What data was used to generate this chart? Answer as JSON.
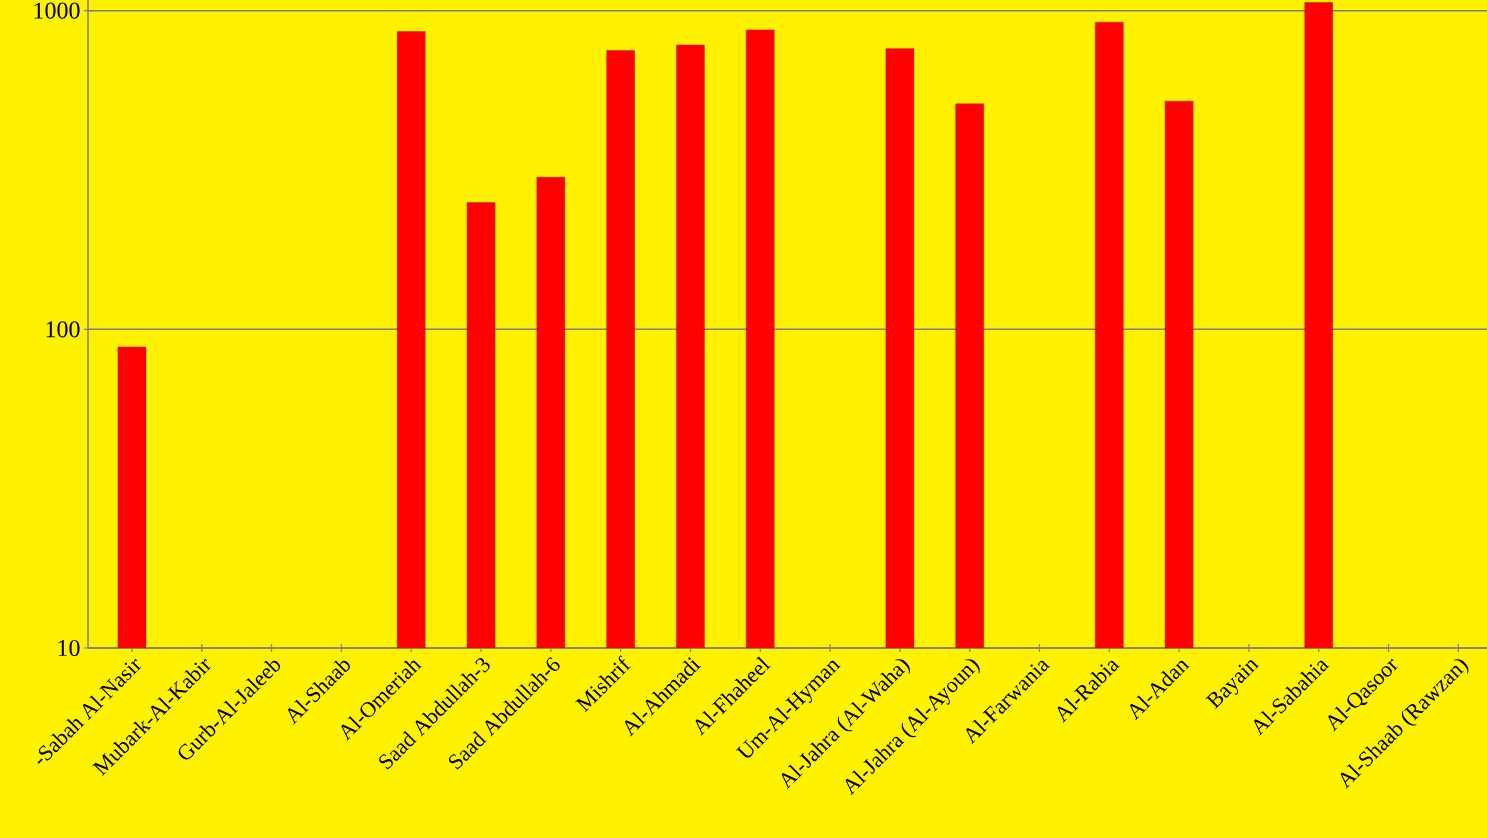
{
  "chart_data": {
    "type": "bar",
    "log": "y",
    "grid": "y",
    "color": "#ff0000",
    "categories": [
      "-Sabah Al-Nasir",
      "Mubark-Al-Kabir",
      "Gurb-Al-Jaleeb",
      "Al-Shaab",
      "Al-Omeriah",
      "Saad Abdullah-3",
      "Saad Abdullah-6",
      "Mishrif",
      "Al-Ahmadi",
      "Al-Fhaheel",
      "Um-Al-Hyman",
      "Al-Jahra (Al-Waha)",
      "Al-Jahra (Al-Ayoun)",
      "Al-Farwania",
      "Al-Rabia",
      "Al-Adan",
      "Bayain",
      "Al-Sabahia",
      "Al-Qasoor",
      "Al-Shaab (Rawzan)"
    ],
    "values": [
      88,
      null,
      null,
      null,
      860,
      250,
      300,
      750,
      780,
      870,
      null,
      760,
      510,
      null,
      920,
      520,
      null,
      1060,
      null,
      null
    ],
    "ylim": [
      10,
      1080
    ],
    "yticks": [
      10,
      100,
      1000
    ]
  }
}
